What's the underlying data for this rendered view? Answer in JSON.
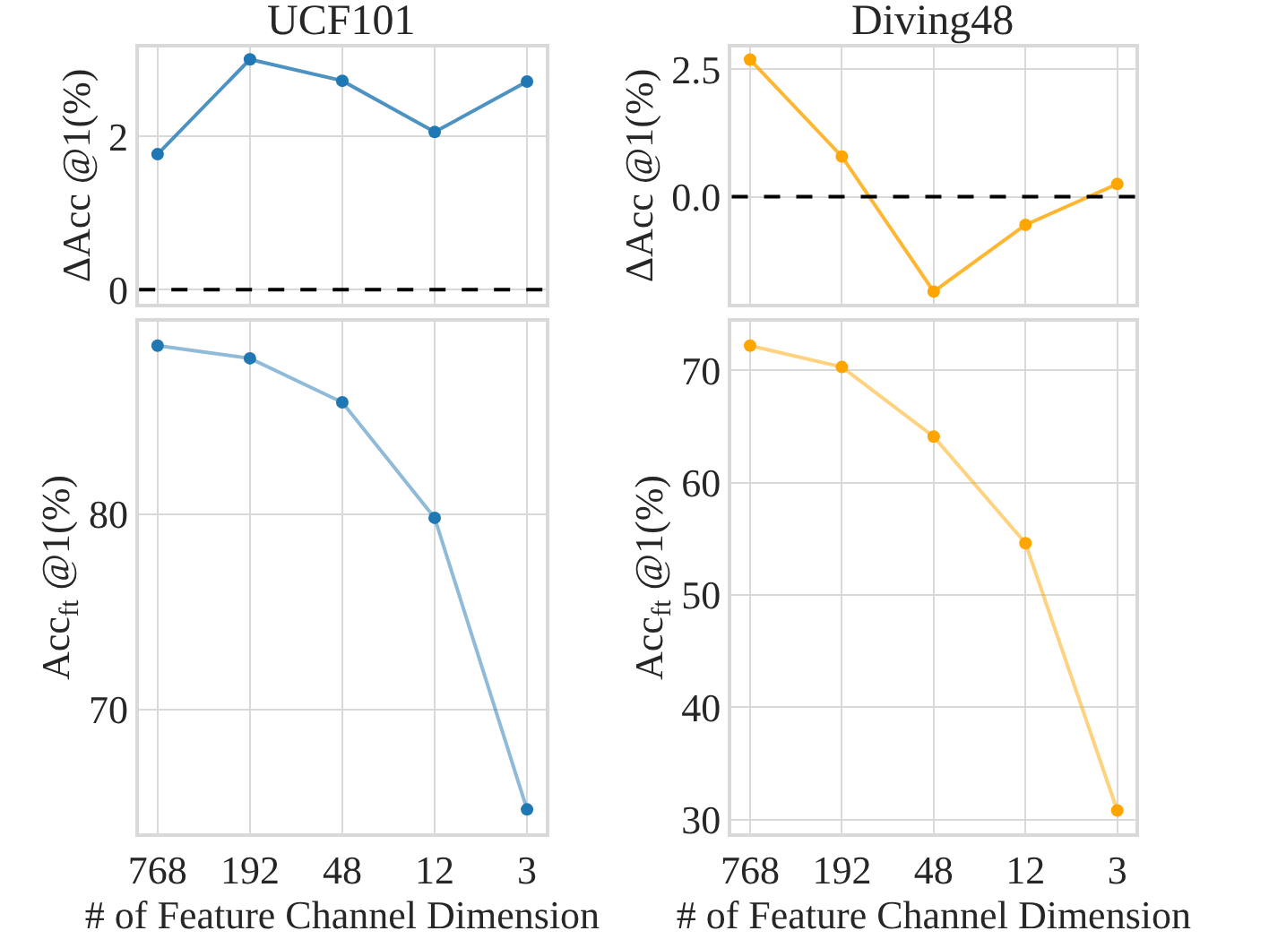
{
  "chart_data": [
    {
      "type": "line",
      "title": "UCF101",
      "ylabel": "ΔAcc @1(%)",
      "categories": [
        "768",
        "192",
        "48",
        "12",
        "3"
      ],
      "series": [
        {
          "color": "#1f77b4",
          "values": [
            1.77,
            3.01,
            2.73,
            2.06,
            2.72
          ]
        }
      ],
      "ylim": [
        -0.18,
        3.16
      ],
      "yticks": [
        0,
        2
      ],
      "ref_lines": [
        {
          "axis": "y",
          "value": 0,
          "color": "#000000",
          "line_style": "dashed"
        }
      ],
      "grid": true,
      "marker": "circle",
      "line_style": "solid",
      "tick_labels": "y"
    },
    {
      "type": "line",
      "title": "Diving48",
      "ylabel": "ΔAcc @1(%)",
      "categories": [
        "768",
        "192",
        "48",
        "12",
        "3"
      ],
      "series": [
        {
          "color": "#ffa500",
          "values": [
            2.69,
            0.79,
            -1.86,
            -0.55,
            0.25
          ]
        }
      ],
      "ylim": [
        -2.09,
        2.92
      ],
      "yticks": [
        {
          "value": 0,
          "label": "0.0"
        },
        2.5
      ],
      "ref_lines": [
        {
          "axis": "y",
          "value": 0,
          "color": "#000000",
          "line_style": "dashed"
        }
      ],
      "grid": true,
      "marker": "circle",
      "line_style": "solid",
      "tick_labels": "y"
    },
    {
      "type": "line",
      "xlabel": "# of Feature Channel Dimension",
      "ylabel": "Acc$_{ft}$ @1(%)",
      "categories": [
        "768",
        "192",
        "48",
        "12",
        "3"
      ],
      "series": [
        {
          "color": "#1f77b4",
          "values": [
            88.6,
            87.95,
            85.7,
            79.8,
            64.9
          ]
        }
      ],
      "ylim": [
        63.7,
        89.8
      ],
      "yticks": [
        70,
        80
      ],
      "grid": true,
      "marker": "circle",
      "line_style": "solid"
    },
    {
      "type": "line",
      "xlabel": "# of Feature Channel Dimension",
      "ylabel": "Acc$_{ft}$ @1(%)",
      "categories": [
        "768",
        "192",
        "48",
        "12",
        "3"
      ],
      "series": [
        {
          "color": "#ffa500",
          "values": [
            72.2,
            70.3,
            64.1,
            54.6,
            30.8
          ]
        }
      ],
      "ylim": [
        28.8,
        74.3
      ],
      "yticks": [
        30,
        40,
        50,
        60,
        70
      ],
      "grid": true,
      "marker": "circle",
      "line_style": "solid"
    }
  ]
}
